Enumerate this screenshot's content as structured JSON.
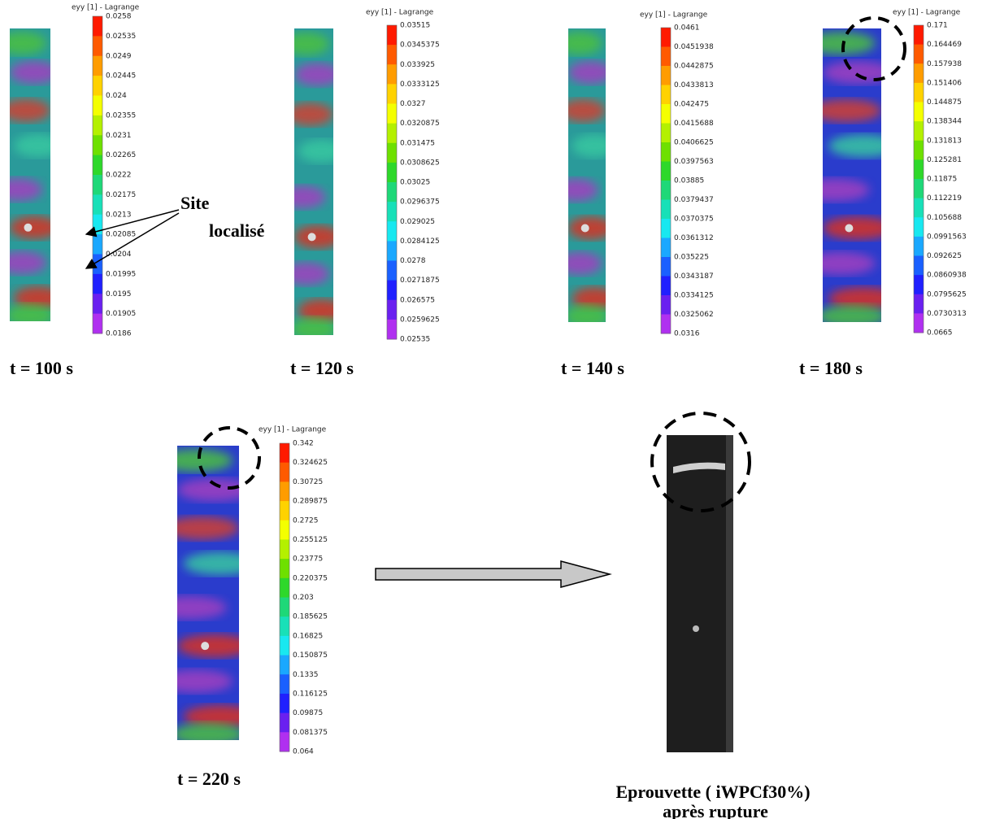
{
  "panels": [
    {
      "colorbar_title": "eyy [1] - Lagrange",
      "ticks": [
        "0.0258",
        "0.02535",
        "0.0249",
        "0.02445",
        "0.024",
        "0.02355",
        "0.0231",
        "0.02265",
        "0.0222",
        "0.02175",
        "0.0213",
        "0.02085",
        "0.0204",
        "0.01995",
        "0.0195",
        "0.01905",
        "0.0186"
      ],
      "time": "t = 100 s"
    },
    {
      "colorbar_title": "eyy [1] - Lagrange",
      "ticks": [
        "0.03515",
        "0.0345375",
        "0.033925",
        "0.0333125",
        "0.0327",
        "0.0320875",
        "0.031475",
        "0.0308625",
        "0.03025",
        "0.0296375",
        "0.029025",
        "0.0284125",
        "0.0278",
        "0.0271875",
        "0.026575",
        "0.0259625",
        "0.02535"
      ],
      "time": "t = 120 s"
    },
    {
      "colorbar_title": "eyy [1] - Lagrange",
      "ticks": [
        "0.0461",
        "0.0451938",
        "0.0442875",
        "0.0433813",
        "0.042475",
        "0.0415688",
        "0.0406625",
        "0.0397563",
        "0.03885",
        "0.0379437",
        "0.0370375",
        "0.0361312",
        "0.035225",
        "0.0343187",
        "0.0334125",
        "0.0325062",
        "0.0316"
      ],
      "time": "t = 140 s"
    },
    {
      "colorbar_title": "eyy [1] - Lagrange",
      "ticks": [
        "0.171",
        "0.164469",
        "0.157938",
        "0.151406",
        "0.144875",
        "0.138344",
        "0.131813",
        "0.125281",
        "0.11875",
        "0.112219",
        "0.105688",
        "0.0991563",
        "0.092625",
        "0.0860938",
        "0.0795625",
        "0.0730313",
        "0.0665"
      ],
      "time": "t = 180 s"
    },
    {
      "colorbar_title": "eyy [1] - Lagrange",
      "ticks": [
        "0.342",
        "0.324625",
        "0.30725",
        "0.289875",
        "0.2725",
        "0.255125",
        "0.23775",
        "0.220375",
        "0.203",
        "0.185625",
        "0.16825",
        "0.150875",
        "0.1335",
        "0.116125",
        "0.09875",
        "0.081375",
        "0.064"
      ],
      "time": "t = 220 s"
    }
  ],
  "annotation": {
    "line1": "Site",
    "line2": "localisé"
  },
  "specimen": {
    "caption1": "Eprouvette ( iWPCf30%)",
    "caption2": "après rupture"
  }
}
